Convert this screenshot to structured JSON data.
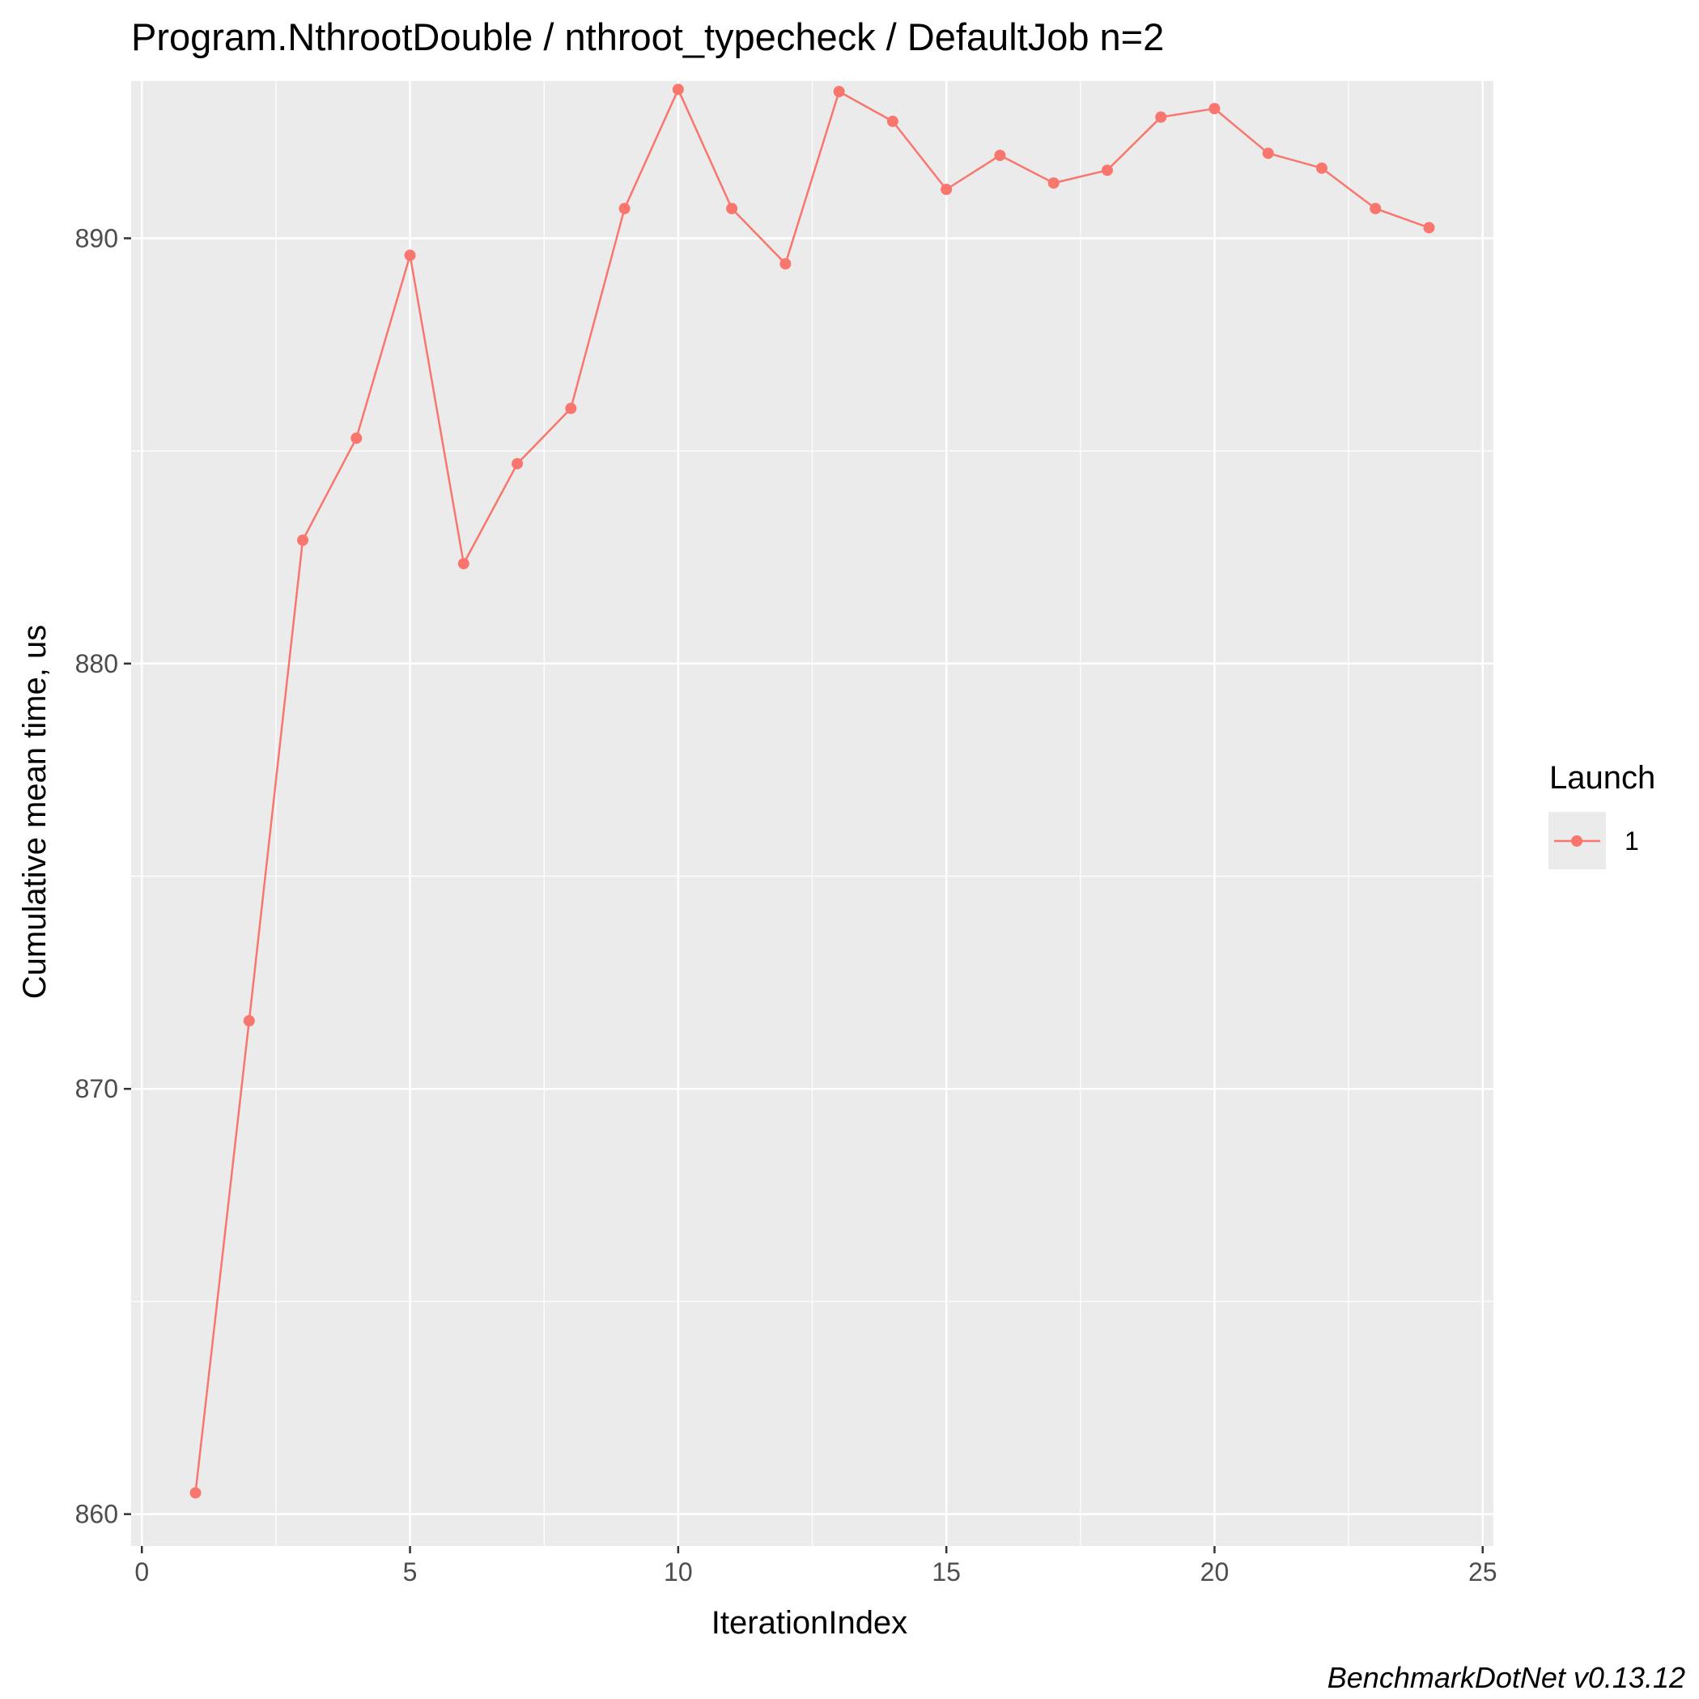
{
  "chart_data": {
    "type": "line",
    "title": "Program.NthrootDouble / nthroot_typecheck / DefaultJob n=2",
    "xlabel": "IterationIndex",
    "ylabel": "Cumulative mean time, us",
    "caption": "BenchmarkDotNet v0.13.12",
    "xlim": [
      -0.2,
      25.2
    ],
    "ylim": [
      859.25,
      893.7
    ],
    "x_ticks": [
      0,
      5,
      10,
      15,
      20,
      25
    ],
    "y_ticks": [
      860,
      870,
      880,
      890
    ],
    "x_tick_labels": [
      "0",
      "5",
      "10",
      "15",
      "20",
      "25"
    ],
    "y_tick_labels": [
      "860",
      "870",
      "880",
      "890"
    ],
    "grid": true,
    "legend": {
      "title": "Launch",
      "position": "right",
      "entries": [
        {
          "label": "1",
          "color": "#F8766D"
        }
      ]
    },
    "series": [
      {
        "name": "1",
        "color": "#F8766D",
        "x": [
          1,
          2,
          3,
          4,
          5,
          6,
          7,
          8,
          9,
          10,
          11,
          12,
          13,
          14,
          15,
          16,
          17,
          18,
          19,
          20,
          21,
          22,
          23,
          24
        ],
        "y": [
          860.5,
          871.6,
          882.9,
          885.3,
          889.6,
          882.35,
          884.7,
          886.0,
          890.7,
          893.5,
          890.7,
          889.4,
          893.45,
          892.75,
          891.15,
          891.95,
          891.3,
          891.6,
          892.85,
          893.05,
          892.0,
          891.65,
          890.7,
          890.25
        ]
      }
    ]
  }
}
